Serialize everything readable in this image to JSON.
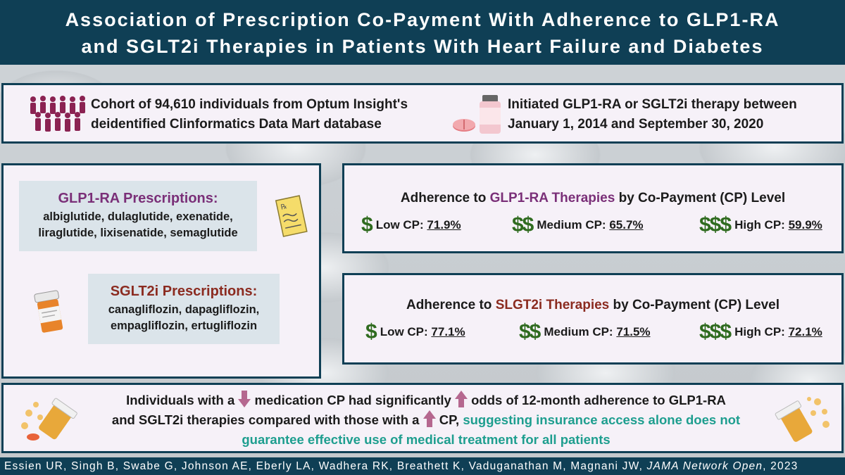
{
  "header": {
    "title_line1": "Association of Prescription Co-Payment With Adherence to GLP1-RA",
    "title_line2": "and SGLT2i Therapies in Patients With Heart Failure and Diabetes"
  },
  "cohort": {
    "line1": "Cohort of 94,610 individuals from Optum Insight's",
    "line2": "deidentified Clinformatics Data Mart database",
    "therapy_line1": "Initiated GLP1-RA or SGLT2i therapy between",
    "therapy_line2": "January 1, 2014 and September 30, 2020"
  },
  "prescriptions": {
    "glp_title": "GLP1-RA Prescriptions:",
    "glp_line1": "albiglutide, dulaglutide, exenatide,",
    "glp_line2": "liraglutide, lixisenatide, semaglutide",
    "sglt_title": "SGLT2i Prescriptions:",
    "sglt_line1": "canagliflozin, dapagliflozin,",
    "sglt_line2": "empagliflozin, ertugliflozin"
  },
  "glp_adherence": {
    "title_pre": "Adherence to ",
    "title_hl": "GLP1-RA Therapies",
    "title_post": " by Co-Payment (CP) Level",
    "low_sym": "$",
    "low_label": "Low CP: ",
    "low_value": "71.9%",
    "med_sym": "$$",
    "med_label": "Medium CP: ",
    "med_value": "65.7%",
    "high_sym": "$$$",
    "high_label": "High CP: ",
    "high_value": "59.9%"
  },
  "sglt_adherence": {
    "title_pre": "Adherence to ",
    "title_hl": "SLGT2i Therapies",
    "title_post": " by Co-Payment (CP) Level",
    "low_sym": "$",
    "low_label": "Low CP: ",
    "low_value": "77.1%",
    "med_sym": "$$",
    "med_label": "Medium CP: ",
    "med_value": "71.5%",
    "high_sym": "$$$",
    "high_label": "High CP: ",
    "high_value": "72.1%"
  },
  "conclusion": {
    "p1": "Individuals with a",
    "p2": " medication CP had significantly",
    "p3": " odds of 12-month adherence to GLP1-RA",
    "p4": "and SGLT2i therapies compared with those with a",
    "p5": " CP, ",
    "p6": "suggesting insurance access alone does not guarantee effective use of medical treatment for all patients"
  },
  "footer": {
    "authors": "Essien UR, Singh B, Swabe G, Johnson AE, Eberly LA, Wadhera RK, Breathett K, Vaduganathan M, Magnani JW, ",
    "journal": "JAMA Network Open",
    "year": ", 2023"
  },
  "colors": {
    "navy": "#0f3f55",
    "purple": "#7a2f78",
    "rust": "#8b2b20",
    "teal": "#1e9e8f",
    "green": "#2f6b1f",
    "arrow": "#b5678f"
  }
}
